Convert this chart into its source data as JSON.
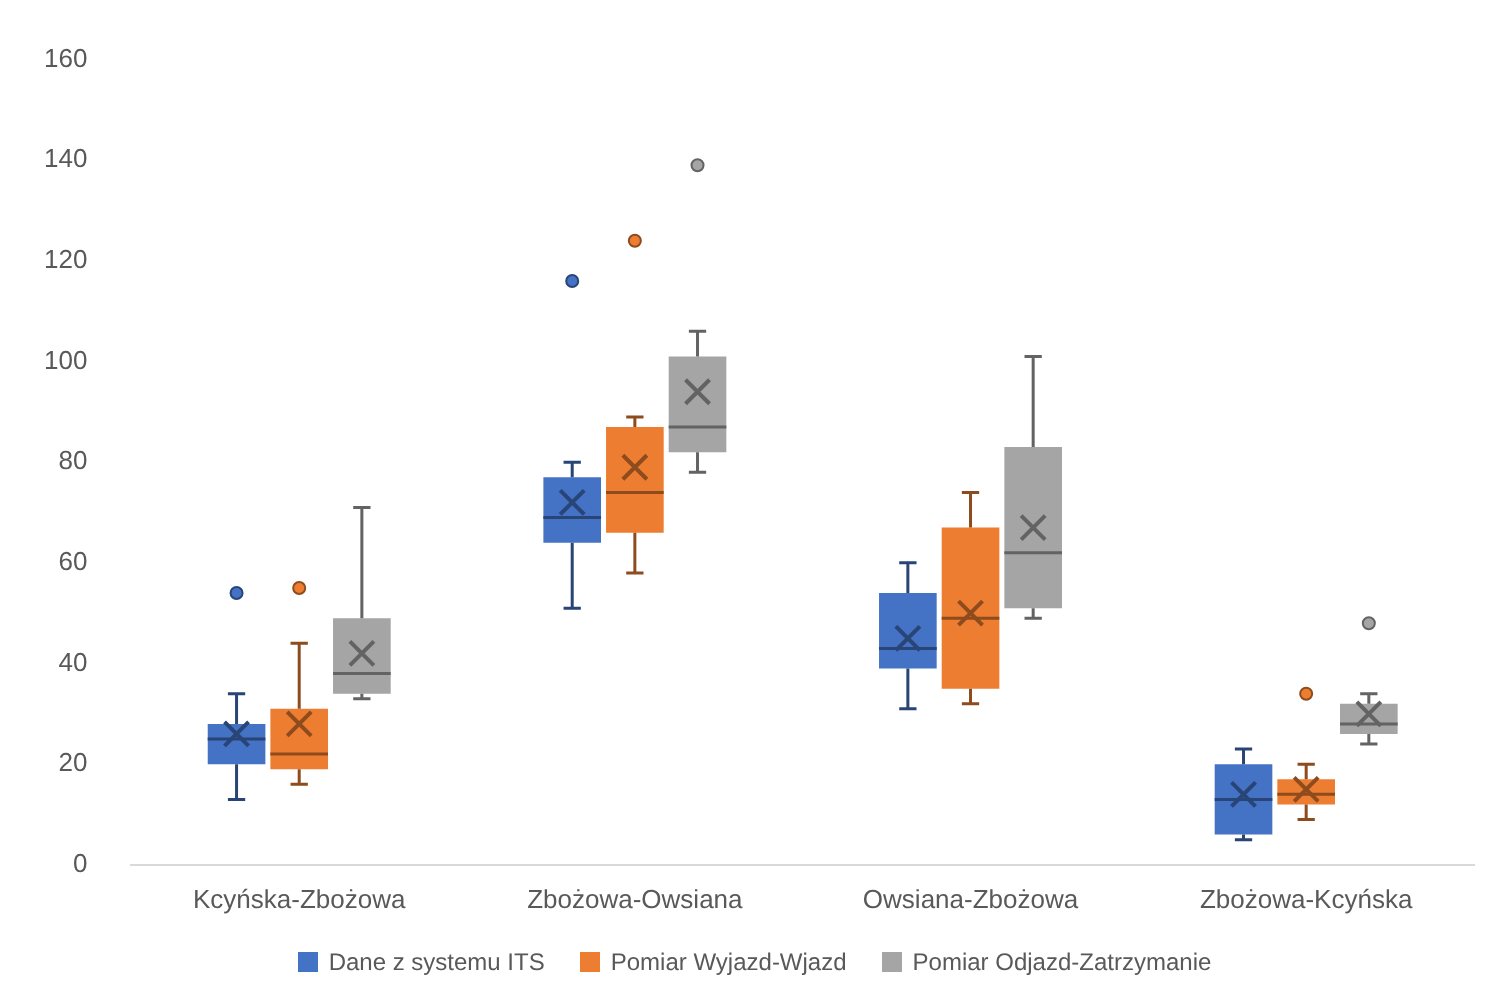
{
  "chart_data": {
    "type": "box",
    "categories": [
      "Kcyńska-Zbożowa",
      "Zbożowa-Owsiana",
      "Owsiana-Zbożowa",
      "Zbożowa-Kcyńska"
    ],
    "ylim": [
      0,
      160
    ],
    "yticks": [
      0,
      20,
      40,
      60,
      80,
      100,
      120,
      140,
      160
    ],
    "grid": false,
    "legend": "bottom",
    "series": [
      {
        "name": "Dane z systemu ITS",
        "color": "#4472c4",
        "boxes": [
          {
            "low": 13,
            "q1": 20,
            "median": 25,
            "q3": 28,
            "high": 34,
            "mean": 26,
            "outliers": [
              54
            ]
          },
          {
            "low": 51,
            "q1": 64,
            "median": 69,
            "q3": 77,
            "high": 80,
            "mean": 72,
            "outliers": [
              116
            ]
          },
          {
            "low": 31,
            "q1": 39,
            "median": 43,
            "q3": 54,
            "high": 60,
            "mean": 45
          },
          {
            "low": 5,
            "q1": 6,
            "median": 13,
            "q3": 20,
            "high": 23,
            "mean": 14
          }
        ]
      },
      {
        "name": "Pomiar Wyjazd-Wjazd",
        "color": "#ed7d31",
        "boxes": [
          {
            "low": 16,
            "q1": 19,
            "median": 22,
            "q3": 31,
            "high": 44,
            "mean": 28,
            "outliers": [
              55
            ]
          },
          {
            "low": 58,
            "q1": 66,
            "median": 74,
            "q3": 87,
            "high": 89,
            "mean": 79,
            "outliers": [
              124
            ]
          },
          {
            "low": 32,
            "q1": 35,
            "median": 49,
            "q3": 67,
            "high": 74,
            "mean": 50
          },
          {
            "low": 9,
            "q1": 12,
            "median": 14,
            "q3": 17,
            "high": 20,
            "mean": 15,
            "outliers": [
              34
            ]
          }
        ]
      },
      {
        "name": "Pomiar Odjazd-Zatrzymanie",
        "color": "#a5a5a5",
        "boxes": [
          {
            "low": 33,
            "q1": 34,
            "median": 38,
            "q3": 49,
            "high": 71,
            "mean": 42
          },
          {
            "low": 78,
            "q1": 82,
            "median": 87,
            "q3": 101,
            "high": 106,
            "mean": 94,
            "outliers": [
              139
            ]
          },
          {
            "low": 49,
            "q1": 51,
            "median": 62,
            "q3": 83,
            "high": 101,
            "mean": 67
          },
          {
            "low": 24,
            "q1": 26,
            "median": 28,
            "q3": 32,
            "high": 34,
            "mean": 30,
            "outliers": [
              48
            ]
          }
        ]
      }
    ]
  }
}
